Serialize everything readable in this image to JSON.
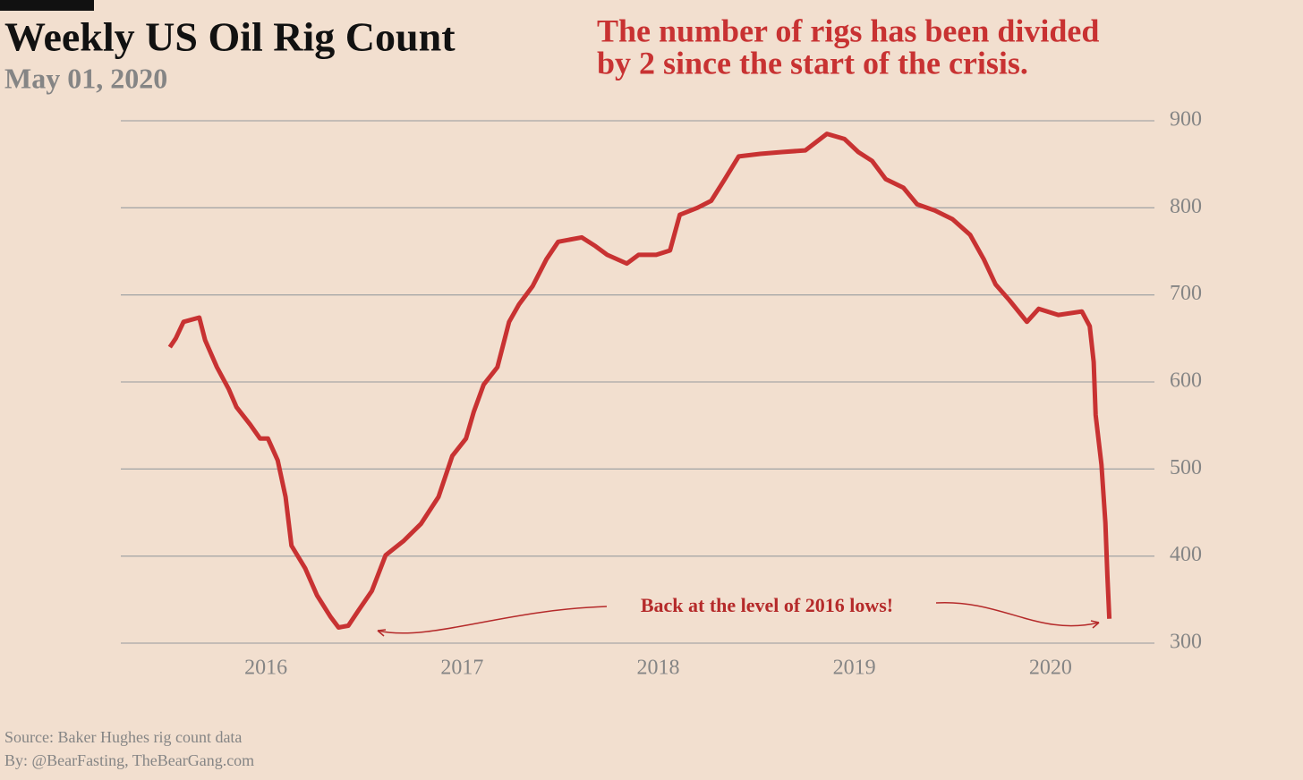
{
  "chart_data": {
    "type": "line",
    "title": "Weekly US Oil Rig Count",
    "subtitle": "May 01, 2020",
    "annotation": [
      "The number of rigs has been divided",
      "by 2 since the start of the crisis."
    ],
    "callout": "Back at the level of 2016 lows!",
    "source": "Source: Baker Hughes rig count data",
    "byline": "By: @BearFasting, TheBearGang.com",
    "xlim": [
      2015.26,
      2020.53
    ],
    "xticks": [
      2016,
      2017,
      2018,
      2019,
      2020
    ],
    "ylim": [
      300,
      900
    ],
    "yticks": [
      300,
      400,
      500,
      600,
      700,
      800,
      900
    ],
    "grid": true,
    "series": [
      {
        "color": "#c83232",
        "x": [
          2015.51,
          2015.54,
          2015.58,
          2015.66,
          2015.69,
          2015.75,
          2015.81,
          2015.85,
          2015.92,
          2015.97,
          2016.01,
          2016.06,
          2016.1,
          2016.13,
          2016.2,
          2016.26,
          2016.33,
          2016.37,
          2016.42,
          2016.47,
          2016.54,
          2016.61,
          2016.7,
          2016.79,
          2016.88,
          2016.95,
          2017.02,
          2017.06,
          2017.11,
          2017.18,
          2017.24,
          2017.29,
          2017.36,
          2017.43,
          2017.49,
          2017.61,
          2017.68,
          2017.74,
          2017.84,
          2017.9,
          2017.99,
          2018.06,
          2018.11,
          2018.2,
          2018.27,
          2018.34,
          2018.41,
          2018.52,
          2018.63,
          2018.75,
          2018.86,
          2018.95,
          2019.02,
          2019.09,
          2019.16,
          2019.25,
          2019.32,
          2019.41,
          2019.5,
          2019.59,
          2019.66,
          2019.72,
          2019.79,
          2019.88,
          2019.94,
          2020.04,
          2020.16,
          2020.2,
          2020.22,
          2020.23,
          2020.26,
          2020.28,
          2020.29,
          2020.3
        ],
        "values": [
          640,
          650,
          669,
          674,
          648,
          617,
          592,
          571,
          551,
          535,
          535,
          510,
          468,
          412,
          386,
          355,
          330,
          318,
          320,
          337,
          360,
          401,
          417,
          437,
          468,
          515,
          535,
          566,
          597,
          617,
          669,
          689,
          710,
          741,
          761,
          766,
          756,
          746,
          736,
          746,
          746,
          751,
          792,
          800,
          808,
          833,
          859,
          862,
          864,
          866,
          885,
          879,
          864,
          854,
          833,
          823,
          804,
          797,
          787,
          769,
          741,
          712,
          694,
          669,
          684,
          677,
          681,
          664,
          623,
          562,
          505,
          438,
          378,
          328
        ]
      }
    ]
  }
}
